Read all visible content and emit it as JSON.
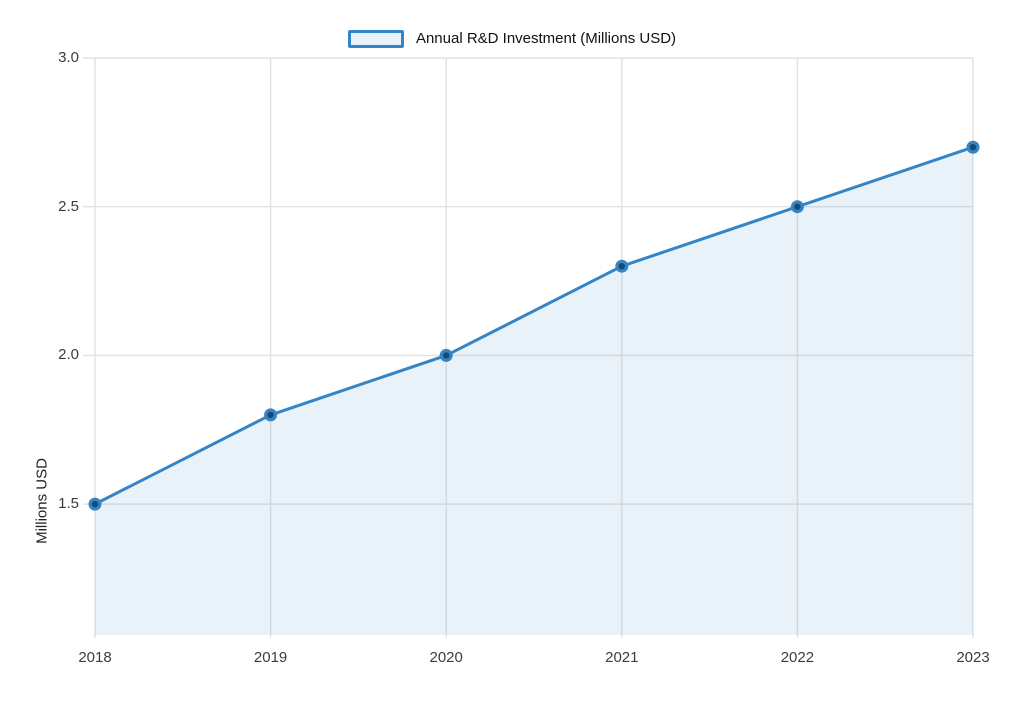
{
  "legend": {
    "label": "Annual R&D Investment (Millions USD)"
  },
  "chart_data": {
    "type": "area",
    "title": "",
    "x": [
      2018,
      2019,
      2020,
      2021,
      2022,
      2023
    ],
    "x_tick_labels": [
      "2018",
      "2019",
      "2020",
      "2021",
      "2022",
      "2023"
    ],
    "series": [
      {
        "name": "Annual R&D Investment (Millions USD)",
        "values": [
          1.5,
          1.8,
          2.0,
          2.3,
          2.5,
          2.7
        ]
      }
    ],
    "xlabel": "",
    "ylabel": "Millions USD",
    "y_ticks": [
      1.5,
      2.0,
      2.5,
      3.0
    ],
    "y_tick_labels": [
      "1.5",
      "2.0",
      "2.5",
      "3.0"
    ],
    "ylim": [
      1.06,
      3.0
    ],
    "grid": true,
    "legend_position": "top-center",
    "colors": {
      "line": "#3584c6",
      "marker_outer": "#3584c6",
      "marker_inner": "#174a73",
      "area_fill": "rgba(53,132,198,0.10)",
      "gridline": "#e2e2e2",
      "tick_text": "#3d3d3d",
      "legend_border": "#3584c6",
      "legend_fill": "#e9f2fb",
      "background": "#ffffff"
    }
  }
}
